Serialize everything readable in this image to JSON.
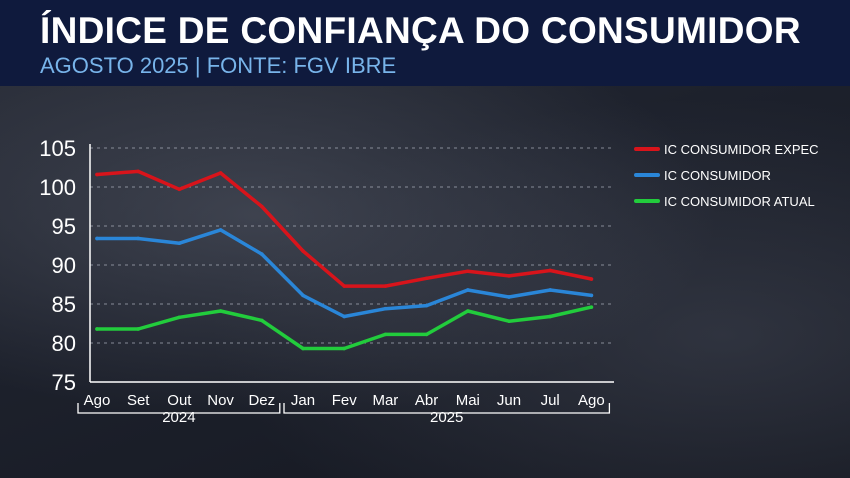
{
  "header": {
    "title": "ÍNDICE DE CONFIANÇA DO CONSUMIDOR",
    "subtitle": "AGOSTO 2025 | FONTE: FGV IBRE"
  },
  "chart_data": {
    "type": "line",
    "categories": [
      "Ago",
      "Set",
      "Out",
      "Nov",
      "Dez",
      "Jan",
      "Fev",
      "Mar",
      "Abr",
      "Mai",
      "Jun",
      "Jul",
      "Ago"
    ],
    "year_groups": [
      {
        "label": "2024",
        "start": 0,
        "end": 4
      },
      {
        "label": "2025",
        "start": 5,
        "end": 12
      }
    ],
    "yticks": [
      "105",
      "100",
      "95",
      "90",
      "85",
      "80",
      "75"
    ],
    "ylim": [
      75,
      105
    ],
    "grid": true,
    "legend_position": "top-right",
    "series": [
      {
        "name": "IC CONSUMIDOR EXPEC",
        "color": "#d8141b",
        "values": [
          101.6,
          102.0,
          99.7,
          101.8,
          97.5,
          91.8,
          87.3,
          87.3,
          88.3,
          89.2,
          88.6,
          89.3,
          88.2
        ]
      },
      {
        "name": "IC CONSUMIDOR",
        "color": "#2a86d8",
        "values": [
          93.4,
          93.4,
          92.8,
          94.5,
          91.4,
          86.1,
          83.4,
          84.4,
          84.8,
          86.8,
          85.9,
          86.8,
          86.1
        ]
      },
      {
        "name": "IC CONSUMIDOR ATUAL",
        "color": "#22cc3c",
        "values": [
          81.8,
          81.8,
          83.3,
          84.1,
          82.9,
          79.3,
          79.3,
          81.1,
          81.1,
          84.1,
          82.8,
          83.4,
          84.6
        ]
      }
    ]
  }
}
